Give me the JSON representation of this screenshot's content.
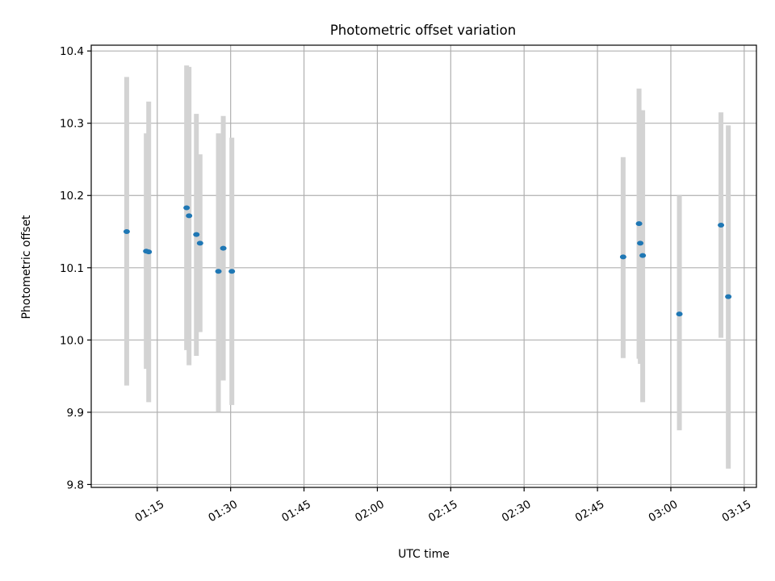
{
  "chart_data": {
    "type": "scatter",
    "title": "Photometric offset variation",
    "xlabel": "UTC time",
    "ylabel": "Photometric offset",
    "x_type": "time",
    "x_ticks": [
      "01:15",
      "01:30",
      "01:45",
      "02:00",
      "02:15",
      "02:30",
      "02:45",
      "03:00",
      "03:15"
    ],
    "y_ticks": [
      "9.8",
      "9.9",
      "10.0",
      "10.1",
      "10.2",
      "10.3",
      "10.4"
    ],
    "xlim": [
      "01:01:30",
      "03:17:30"
    ],
    "ylim": [
      9.796,
      10.408
    ],
    "grid": true,
    "point_color": "#1f77b4",
    "errorbar_color": "#d3d3d3",
    "points": [
      {
        "x": "01:08:45",
        "y": 10.15,
        "lo": 9.937,
        "hi": 10.364
      },
      {
        "x": "01:12:45",
        "y": 10.123,
        "lo": 9.96,
        "hi": 10.286
      },
      {
        "x": "01:13:15",
        "y": 10.122,
        "lo": 9.914,
        "hi": 10.33
      },
      {
        "x": "01:21:00",
        "y": 10.183,
        "lo": 9.986,
        "hi": 10.38
      },
      {
        "x": "01:21:30",
        "y": 10.172,
        "lo": 9.965,
        "hi": 10.378
      },
      {
        "x": "01:23:00",
        "y": 10.146,
        "lo": 9.978,
        "hi": 10.313
      },
      {
        "x": "01:23:45",
        "y": 10.134,
        "lo": 10.011,
        "hi": 10.257
      },
      {
        "x": "01:27:30",
        "y": 10.095,
        "lo": 9.901,
        "hi": 10.286
      },
      {
        "x": "01:28:30",
        "y": 10.127,
        "lo": 9.944,
        "hi": 10.31
      },
      {
        "x": "01:30:15",
        "y": 10.095,
        "lo": 9.91,
        "hi": 10.28
      },
      {
        "x": "02:50:15",
        "y": 10.115,
        "lo": 9.975,
        "hi": 10.253
      },
      {
        "x": "02:53:30",
        "y": 10.161,
        "lo": 9.974,
        "hi": 10.348
      },
      {
        "x": "02:53:45",
        "y": 10.134,
        "lo": 9.967,
        "hi": 10.318
      },
      {
        "x": "02:54:15",
        "y": 10.117,
        "lo": 9.914,
        "hi": 10.318
      },
      {
        "x": "03:01:45",
        "y": 10.036,
        "lo": 9.875,
        "hi": 10.2
      },
      {
        "x": "03:10:15",
        "y": 10.159,
        "lo": 10.003,
        "hi": 10.315
      },
      {
        "x": "03:11:45",
        "y": 10.06,
        "lo": 9.822,
        "hi": 10.297
      }
    ]
  }
}
